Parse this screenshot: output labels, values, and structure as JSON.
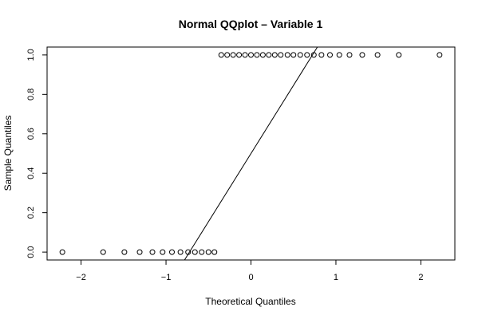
{
  "chart_data": {
    "type": "scatter",
    "title": "Normal QQplot – Variable 1",
    "xlabel": "Theoretical Quantiles",
    "ylabel": "Sample Quantiles",
    "xlim": [
      -2.4,
      2.4
    ],
    "ylim": [
      -0.04,
      1.04
    ],
    "x_ticks": [
      -2,
      -1,
      0,
      1,
      2
    ],
    "x_tick_labels": [
      "−2",
      "−1",
      "0",
      "1",
      "2"
    ],
    "y_ticks": [
      0.0,
      0.2,
      0.4,
      0.6,
      0.8,
      1.0
    ],
    "y_tick_labels": [
      "0.0",
      "0.2",
      "0.4",
      "0.6",
      "0.8",
      "1.0"
    ],
    "grid": false,
    "legend": "none",
    "point_color": "#000000",
    "series": [
      {
        "x": [
          -2.22,
          -1.74,
          -1.49,
          -1.31,
          -1.16,
          -1.04,
          -0.93,
          -0.83,
          -0.74,
          -0.66,
          -0.58,
          -0.5,
          -0.43,
          -0.35,
          -0.28,
          -0.21,
          -0.14,
          -0.07,
          0.0,
          0.07,
          0.14,
          0.21,
          0.28,
          0.35,
          0.43,
          0.5,
          0.58,
          0.66,
          0.74,
          0.83,
          0.93,
          1.04,
          1.16,
          1.31,
          1.49,
          1.74,
          2.22
        ],
        "y": [
          0,
          0,
          0,
          0,
          0,
          0,
          0,
          0,
          0,
          0,
          0,
          0,
          0,
          1,
          1,
          1,
          1,
          1,
          1,
          1,
          1,
          1,
          1,
          1,
          1,
          1,
          1,
          1,
          1,
          1,
          1,
          1,
          1,
          1,
          1,
          1,
          1
        ]
      }
    ],
    "reference_line": {
      "x": [
        -0.724,
        0.724
      ],
      "y": [
        0.0,
        1.0
      ]
    }
  }
}
